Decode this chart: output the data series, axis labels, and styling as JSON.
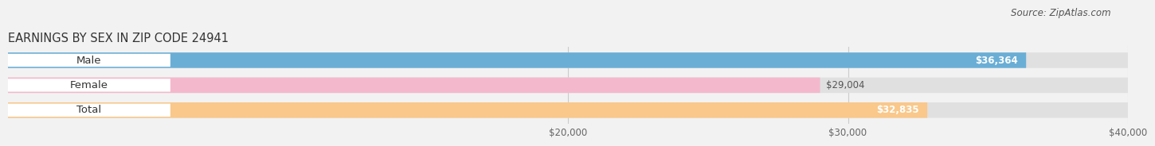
{
  "title": "EARNINGS BY SEX IN ZIP CODE 24941",
  "source": "Source: ZipAtlas.com",
  "categories": [
    "Male",
    "Female",
    "Total"
  ],
  "values": [
    36364,
    29004,
    32835
  ],
  "bar_colors": [
    "#6aaed6",
    "#f4b8cc",
    "#f9c88a"
  ],
  "value_label_colors": [
    "#ffffff",
    "#555555",
    "#ffffff"
  ],
  "value_labels": [
    "$36,364",
    "$29,004",
    "$32,835"
  ],
  "xlim_min": 0,
  "xlim_max": 40000,
  "xtick_values": [
    20000,
    30000,
    40000
  ],
  "xtick_labels": [
    "$20,000",
    "$30,000",
    "$40,000"
  ],
  "background_color": "#f2f2f2",
  "bar_bg_color": "#e0e0e0",
  "title_fontsize": 10.5,
  "source_fontsize": 8.5,
  "label_fontsize": 9.5,
  "value_fontsize": 8.5,
  "tick_fontsize": 8.5,
  "bar_height": 0.62
}
